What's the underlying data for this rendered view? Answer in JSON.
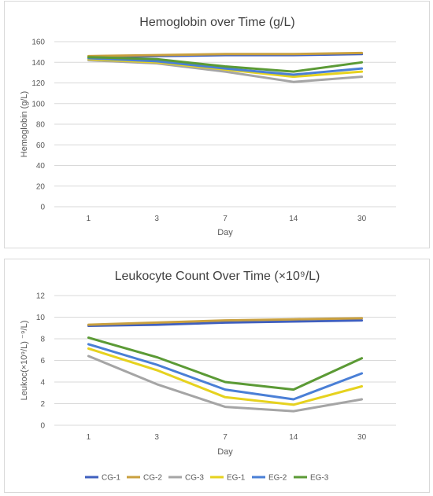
{
  "colors": {
    "CG-1": "#3f5fbf",
    "CG-2": "#c9a03f",
    "CG-3": "#a5a5a5",
    "EG-1": "#e6d21e",
    "EG-2": "#4a7fd6",
    "EG-3": "#5b9a35",
    "grid": "#d9d9d9",
    "text": "#595959"
  },
  "legend": [
    "CG-1",
    "CG-2",
    "CG-3",
    "EG-1",
    "EG-2",
    "EG-3"
  ],
  "chart_data": [
    {
      "type": "line",
      "title": "Hemoglobin over Time (g/L)",
      "xlabel": "Day",
      "ylabel": "Hemoglobin (g/L)",
      "categories": [
        "1",
        "3",
        "7",
        "14",
        "30"
      ],
      "yticks": [
        "0",
        "20",
        "40",
        "60",
        "80",
        "100",
        "120",
        "140",
        "160"
      ],
      "ylim": [
        0,
        160
      ],
      "grid": true,
      "series": [
        {
          "name": "CG-1",
          "values": [
            145,
            146,
            147,
            147,
            148
          ]
        },
        {
          "name": "CG-2",
          "values": [
            146,
            147,
            148,
            148,
            149
          ]
        },
        {
          "name": "CG-3",
          "values": [
            142,
            139,
            131,
            121,
            126
          ]
        },
        {
          "name": "EG-1",
          "values": [
            143,
            140,
            133,
            126,
            131
          ]
        },
        {
          "name": "EG-2",
          "values": [
            144,
            141,
            134,
            128,
            134
          ]
        },
        {
          "name": "EG-3",
          "values": [
            145,
            143,
            136,
            131,
            140
          ]
        }
      ]
    },
    {
      "type": "line",
      "title": "Leukocyte Count Over Time (×10⁹/L)",
      "xlabel": "Day",
      "ylabel": "Leukoc(×10⁹/L) ⁻⁹/L)",
      "categories": [
        "1",
        "3",
        "7",
        "14",
        "30"
      ],
      "yticks": [
        "0",
        "2",
        "4",
        "6",
        "8",
        "10",
        "12"
      ],
      "ylim": [
        0,
        12
      ],
      "grid": true,
      "legend_position": "bottom",
      "series": [
        {
          "name": "CG-1",
          "values": [
            9.2,
            9.3,
            9.5,
            9.6,
            9.7
          ]
        },
        {
          "name": "CG-2",
          "values": [
            9.3,
            9.5,
            9.7,
            9.8,
            9.9
          ]
        },
        {
          "name": "CG-3",
          "values": [
            6.4,
            3.8,
            1.7,
            1.3,
            2.4
          ]
        },
        {
          "name": "EG-1",
          "values": [
            7.1,
            5.1,
            2.6,
            1.9,
            3.6
          ]
        },
        {
          "name": "EG-2",
          "values": [
            7.5,
            5.6,
            3.3,
            2.4,
            4.8
          ]
        },
        {
          "name": "EG-3",
          "values": [
            8.1,
            6.3,
            4.0,
            3.3,
            6.2
          ]
        }
      ]
    }
  ]
}
